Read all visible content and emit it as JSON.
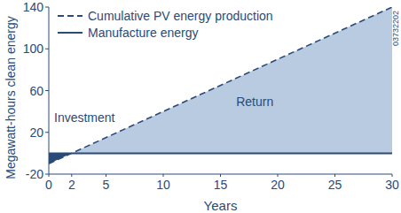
{
  "chart_data": {
    "type": "line",
    "x_label": "Years",
    "y_label": "Megawatt-hours clean energy",
    "xlim": [
      0,
      30
    ],
    "xticks": [
      0,
      2,
      5,
      10,
      15,
      20,
      25,
      30
    ],
    "ylim": [
      -20,
      140
    ],
    "yticks": [
      -20,
      20,
      60,
      100,
      140
    ],
    "grid": false,
    "legend": "upper left",
    "series": [
      {
        "name": "Cumulative PV energy production",
        "color": "#2a4a78",
        "line_style": "dashed",
        "x": [
          0,
          30
        ],
        "values": [
          -10,
          140
        ]
      },
      {
        "name": "Manufacture energy",
        "color": "#2a4a78",
        "line_style": "solid",
        "x": [
          0,
          30
        ],
        "values": [
          0,
          0
        ]
      }
    ],
    "annotations": [
      "Investment",
      "Return",
      "03732202"
    ]
  }
}
